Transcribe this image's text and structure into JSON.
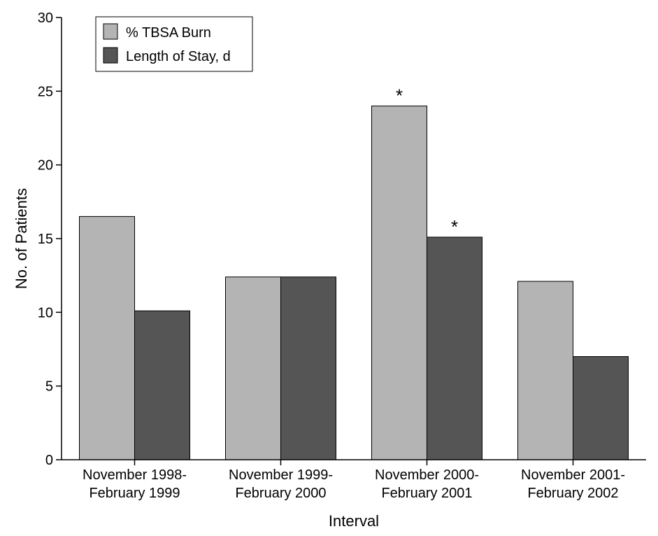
{
  "chart_data": {
    "type": "bar",
    "title": "",
    "xlabel": "Interval",
    "ylabel": "No. of Patients",
    "ylim": [
      0,
      30
    ],
    "yticks": [
      0,
      5,
      10,
      15,
      20,
      25,
      30
    ],
    "categories": [
      [
        "November 1998-",
        "February 1999"
      ],
      [
        "November 1999-",
        "February 2000"
      ],
      [
        "November 2000-",
        "February 2001"
      ],
      [
        "November 2001-",
        "February 2002"
      ]
    ],
    "series": [
      {
        "name": "% TBSA Burn",
        "color": "#b4b4b4",
        "values": [
          16.5,
          12.4,
          24.0,
          12.1
        ],
        "significant": [
          false,
          false,
          true,
          false
        ]
      },
      {
        "name": "Length of Stay, d",
        "color": "#555555",
        "values": [
          10.1,
          12.4,
          15.1,
          7.0
        ],
        "significant": [
          false,
          false,
          true,
          false
        ]
      }
    ],
    "significance_marker": "*",
    "legend_position": "top-left",
    "grid": false
  }
}
